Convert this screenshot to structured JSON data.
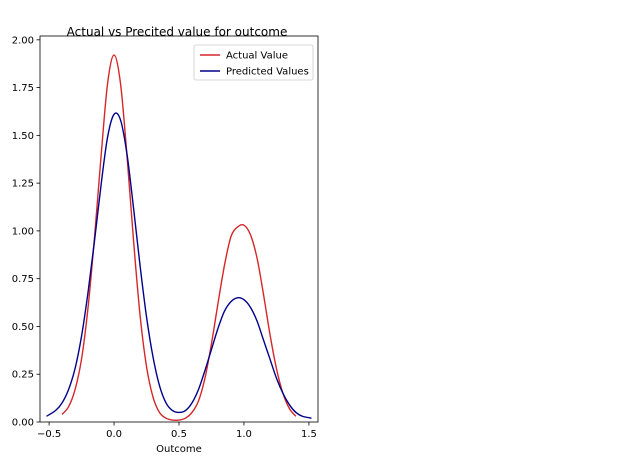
{
  "chart_data": {
    "type": "line",
    "title": "Actual vs Precited value for outcome",
    "xlabel": "Outcome",
    "ylabel": "",
    "xlim": [
      -0.57,
      1.57
    ],
    "ylim": [
      0,
      2.02
    ],
    "xticks": [
      -0.5,
      0.0,
      0.5,
      1.0,
      1.5
    ],
    "xtick_labels": [
      "−0.5",
      "0.0",
      "0.5",
      "1.0",
      "1.5"
    ],
    "yticks": [
      0.0,
      0.25,
      0.5,
      0.75,
      1.0,
      1.25,
      1.5,
      1.75,
      2.0
    ],
    "ytick_labels": [
      "0.00",
      "0.25",
      "0.50",
      "0.75",
      "1.00",
      "1.25",
      "1.50",
      "1.75",
      "2.00"
    ],
    "grid": false,
    "legend_position": "top-right",
    "series": [
      {
        "name": "Actual Value",
        "color": "#d62728",
        "x": [
          -0.4,
          -0.35,
          -0.3,
          -0.25,
          -0.2,
          -0.15,
          -0.1,
          -0.05,
          0.0,
          0.05,
          0.1,
          0.15,
          0.2,
          0.25,
          0.3,
          0.35,
          0.4,
          0.45,
          0.5,
          0.55,
          0.6,
          0.65,
          0.7,
          0.75,
          0.8,
          0.85,
          0.9,
          0.95,
          1.0,
          1.05,
          1.1,
          1.15,
          1.2,
          1.25,
          1.3,
          1.35,
          1.4
        ],
        "y": [
          0.04,
          0.08,
          0.17,
          0.33,
          0.6,
          0.97,
          1.39,
          1.77,
          1.92,
          1.77,
          1.39,
          0.95,
          0.56,
          0.29,
          0.13,
          0.05,
          0.02,
          0.01,
          0.01,
          0.02,
          0.05,
          0.11,
          0.23,
          0.41,
          0.62,
          0.82,
          0.97,
          1.02,
          1.03,
          0.98,
          0.86,
          0.67,
          0.46,
          0.28,
          0.15,
          0.07,
          0.03
        ]
      },
      {
        "name": "Predicted Values",
        "color": "#00008b",
        "x": [
          -0.52,
          -0.45,
          -0.4,
          -0.35,
          -0.3,
          -0.25,
          -0.2,
          -0.15,
          -0.1,
          -0.05,
          0.0,
          0.05,
          0.1,
          0.15,
          0.2,
          0.25,
          0.3,
          0.35,
          0.4,
          0.45,
          0.5,
          0.55,
          0.6,
          0.65,
          0.7,
          0.75,
          0.8,
          0.85,
          0.9,
          0.95,
          1.0,
          1.05,
          1.1,
          1.15,
          1.2,
          1.25,
          1.3,
          1.35,
          1.4,
          1.45,
          1.52
        ],
        "y": [
          0.03,
          0.06,
          0.1,
          0.17,
          0.28,
          0.45,
          0.68,
          0.95,
          1.24,
          1.49,
          1.61,
          1.58,
          1.4,
          1.12,
          0.82,
          0.55,
          0.34,
          0.19,
          0.1,
          0.06,
          0.05,
          0.06,
          0.1,
          0.17,
          0.27,
          0.38,
          0.49,
          0.58,
          0.63,
          0.65,
          0.64,
          0.6,
          0.53,
          0.43,
          0.33,
          0.23,
          0.15,
          0.09,
          0.05,
          0.03,
          0.02
        ]
      }
    ]
  }
}
